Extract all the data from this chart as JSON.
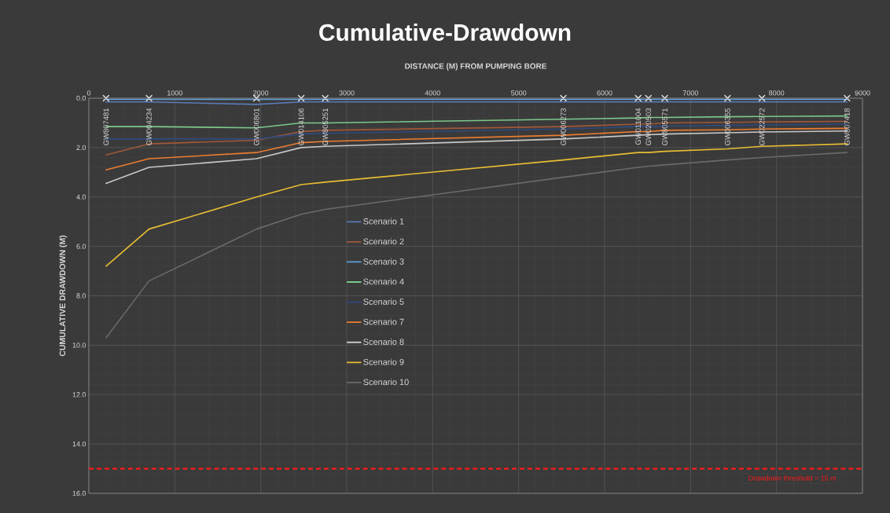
{
  "chart_data": {
    "type": "line",
    "title": "Cumulative-Drawdown",
    "xlabel": "DISTANCE (M) FROM PUMPING BORE",
    "ylabel": "CUMULATIVE DRAWDOWN (M)",
    "x": [
      200,
      700,
      1950,
      2470,
      2750,
      5520,
      6390,
      6510,
      6700,
      7430,
      7830,
      8820
    ],
    "series": [
      {
        "name": "Scenario 1",
        "color": "#5b7bb8",
        "values": [
          0.15,
          0.15,
          0.25,
          0.15,
          0.15,
          0.15,
          0.15,
          0.15,
          0.15,
          0.15,
          0.15,
          0.15
        ]
      },
      {
        "name": "Scenario 2",
        "color": "#a0583a",
        "values": [
          2.3,
          1.85,
          1.7,
          1.35,
          1.3,
          1.15,
          1.05,
          1.05,
          1.0,
          0.98,
          0.96,
          0.94
        ]
      },
      {
        "name": "Scenario 3",
        "color": "#5fa0d8",
        "values": [
          0.05,
          0.05,
          0.05,
          0.05,
          0.05,
          0.05,
          0.05,
          0.05,
          0.05,
          0.05,
          0.05,
          0.05
        ]
      },
      {
        "name": "Scenario 4",
        "color": "#7cc98c",
        "values": [
          1.15,
          1.15,
          1.2,
          1.0,
          1.0,
          0.85,
          0.8,
          0.78,
          0.78,
          0.75,
          0.74,
          0.72
        ]
      },
      {
        "name": "Scenario 5",
        "color": "#2e4a7e",
        "values": [
          1.65,
          1.65,
          1.65,
          1.45,
          1.42,
          1.25,
          1.15,
          1.15,
          1.13,
          1.1,
          1.08,
          1.05
        ]
      },
      {
        "name": "Scenario 7",
        "color": "#ed7d31",
        "values": [
          2.9,
          2.45,
          2.2,
          1.8,
          1.75,
          1.5,
          1.35,
          1.35,
          1.3,
          1.28,
          1.25,
          1.22
        ]
      },
      {
        "name": "Scenario 8",
        "color": "#c8c8c8",
        "values": [
          3.45,
          2.8,
          2.45,
          2.0,
          1.95,
          1.65,
          1.5,
          1.48,
          1.45,
          1.4,
          1.37,
          1.33
        ]
      },
      {
        "name": "Scenario 9",
        "color": "#e8be34",
        "values": [
          6.8,
          5.3,
          4.0,
          3.5,
          3.4,
          2.5,
          2.2,
          2.2,
          2.15,
          2.05,
          1.95,
          1.85
        ]
      },
      {
        "name": "Scenario 10",
        "color": "#6a6a6a",
        "values": [
          9.7,
          7.4,
          5.3,
          4.7,
          4.5,
          3.2,
          2.8,
          2.75,
          2.7,
          2.5,
          2.4,
          2.2
        ]
      },
      {
        "type": "scatter",
        "marker": "cross",
        "color": "#e6e6e6",
        "values": [
          0,
          0,
          0,
          0,
          0,
          0,
          0,
          0,
          0,
          0,
          0,
          0
        ]
      }
    ],
    "annotations": [
      {
        "text": "GW807481",
        "x": 200,
        "y": 0
      },
      {
        "text": "GW004234",
        "x": 700,
        "y": 0
      },
      {
        "text": "GW006801",
        "x": 1950,
        "y": 0
      },
      {
        "text": "GW014106",
        "x": 2470,
        "y": 0
      },
      {
        "text": "GW805251",
        "x": 2750,
        "y": 0
      },
      {
        "text": "GW006273",
        "x": 5520,
        "y": 0
      },
      {
        "text": "GW011004",
        "x": 6390,
        "y": 0
      },
      {
        "text": "GW020503",
        "x": 6510,
        "y": 0
      },
      {
        "text": "GW805571",
        "x": 6700,
        "y": 0
      },
      {
        "text": "GW006355",
        "x": 7430,
        "y": 0
      },
      {
        "text": "GW022572",
        "x": 7830,
        "y": 0
      },
      {
        "text": "GW807418",
        "x": 8820,
        "y": 0
      }
    ],
    "ref_lines": [
      {
        "axis": "y",
        "value": 15,
        "label": "Drawdown threshold = 15 m",
        "color": "#ff1a1a",
        "line_style": "dashed"
      }
    ],
    "xlim": [
      0,
      9000
    ],
    "xticks": [
      0,
      1000,
      2000,
      3000,
      4000,
      5000,
      6000,
      7000,
      8000,
      9000
    ],
    "ylim": [
      16,
      0
    ],
    "yticks": [
      {
        "value": 0,
        "label": "0.0"
      },
      {
        "value": 2,
        "label": "2.0"
      },
      {
        "value": 4,
        "label": "4.0"
      },
      {
        "value": 6,
        "label": "6.0"
      },
      {
        "value": 8,
        "label": "8.0"
      },
      {
        "value": 10,
        "label": "10.0"
      },
      {
        "value": 12,
        "label": "12.0"
      },
      {
        "value": 14,
        "label": "14.0"
      },
      {
        "value": 16,
        "label": "16.0"
      }
    ],
    "grid": true,
    "legend": "center",
    "marker": "none",
    "line_style": "solid"
  }
}
